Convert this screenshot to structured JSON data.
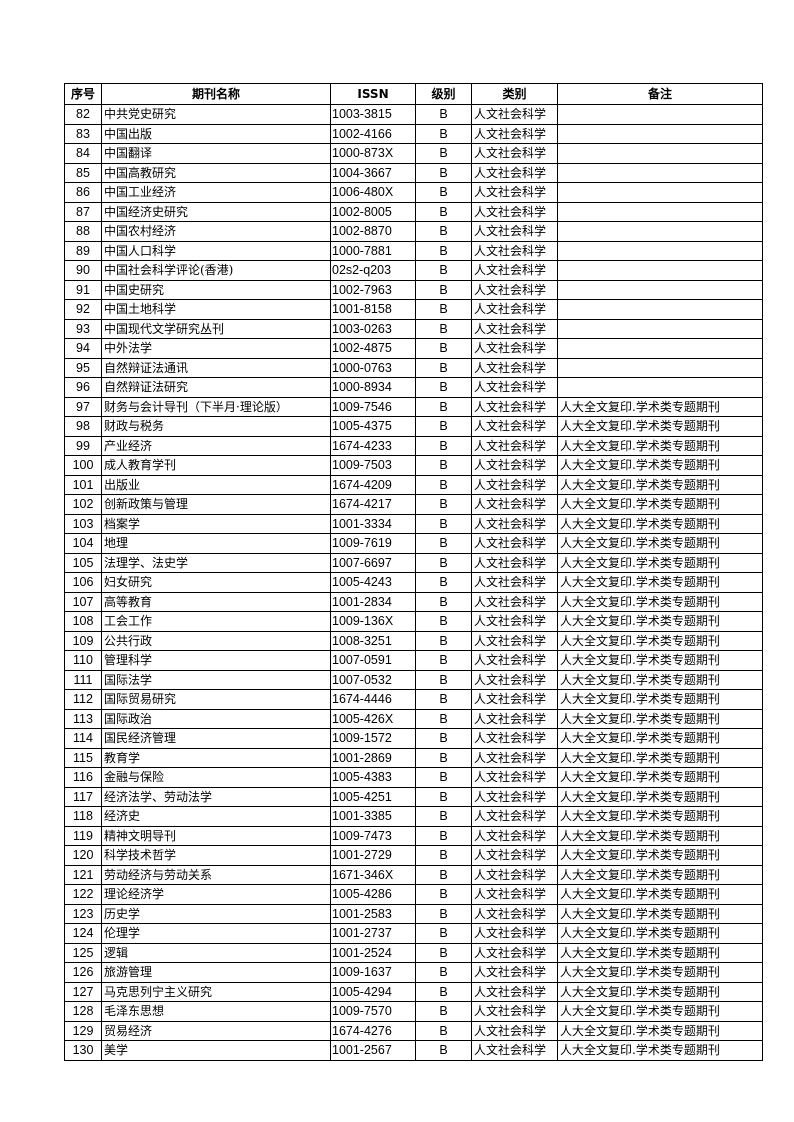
{
  "headers": [
    "序号",
    "期刊名称",
    "ISSN",
    "级别",
    "类别",
    "备注"
  ],
  "rows": [
    [
      "82",
      "中共党史研究",
      "1003-3815",
      "B",
      "人文社会科学",
      ""
    ],
    [
      "83",
      "中国出版",
      "1002-4166",
      "B",
      "人文社会科学",
      ""
    ],
    [
      "84",
      "中国翻译",
      "1000-873X",
      "B",
      "人文社会科学",
      ""
    ],
    [
      "85",
      "中国高教研究",
      "1004-3667",
      "B",
      "人文社会科学",
      ""
    ],
    [
      "86",
      "中国工业经济",
      "1006-480X",
      "B",
      "人文社会科学",
      ""
    ],
    [
      "87",
      "中国经济史研究",
      "1002-8005",
      "B",
      "人文社会科学",
      ""
    ],
    [
      "88",
      "中国农村经济",
      "1002-8870",
      "B",
      "人文社会科学",
      ""
    ],
    [
      "89",
      "中国人口科学",
      "1000-7881",
      "B",
      "人文社会科学",
      ""
    ],
    [
      "90",
      "中国社会科学评论(香港)",
      "02s2-q203",
      "B",
      "人文社会科学",
      ""
    ],
    [
      "91",
      "中国史研究",
      "1002-7963",
      "B",
      "人文社会科学",
      ""
    ],
    [
      "92",
      "中国土地科学",
      "1001-8158",
      "B",
      "人文社会科学",
      ""
    ],
    [
      "93",
      "中国现代文学研究丛刊",
      "1003-0263",
      "B",
      "人文社会科学",
      ""
    ],
    [
      "94",
      "中外法学",
      "1002-4875",
      "B",
      "人文社会科学",
      ""
    ],
    [
      "95",
      "自然辩证法通讯",
      "1000-0763",
      "B",
      "人文社会科学",
      ""
    ],
    [
      "96",
      "自然辩证法研究",
      "1000-8934",
      "B",
      "人文社会科学",
      ""
    ],
    [
      "97",
      "财务与会计导刊（下半月·理论版）",
      "1009-7546",
      "B",
      "人文社会科学",
      "人大全文复印.学术类专题期刊"
    ],
    [
      "98",
      "财政与税务",
      "1005-4375",
      "B",
      "人文社会科学",
      "人大全文复印.学术类专题期刊"
    ],
    [
      "99",
      "产业经济",
      "1674-4233",
      "B",
      "人文社会科学",
      "人大全文复印.学术类专题期刊"
    ],
    [
      "100",
      "成人教育学刊",
      "1009-7503",
      "B",
      "人文社会科学",
      "人大全文复印.学术类专题期刊"
    ],
    [
      "101",
      "出版业",
      "1674-4209",
      "B",
      "人文社会科学",
      "人大全文复印.学术类专题期刊"
    ],
    [
      "102",
      "创新政策与管理",
      "1674-4217",
      "B",
      "人文社会科学",
      "人大全文复印.学术类专题期刊"
    ],
    [
      "103",
      "档案学",
      "1001-3334",
      "B",
      "人文社会科学",
      "人大全文复印.学术类专题期刊"
    ],
    [
      "104",
      "地理",
      "1009-7619",
      "B",
      "人文社会科学",
      "人大全文复印.学术类专题期刊"
    ],
    [
      "105",
      "法理学、法史学",
      "1007-6697",
      "B",
      "人文社会科学",
      "人大全文复印.学术类专题期刊"
    ],
    [
      "106",
      "妇女研究",
      "1005-4243",
      "B",
      "人文社会科学",
      "人大全文复印.学术类专题期刊"
    ],
    [
      "107",
      "高等教育",
      "1001-2834",
      "B",
      "人文社会科学",
      "人大全文复印.学术类专题期刊"
    ],
    [
      "108",
      "工会工作",
      "1009-136X",
      "B",
      "人文社会科学",
      "人大全文复印.学术类专题期刊"
    ],
    [
      "109",
      "公共行政",
      "1008-3251",
      "B",
      "人文社会科学",
      "人大全文复印.学术类专题期刊"
    ],
    [
      "110",
      "管理科学",
      "1007-0591",
      "B",
      "人文社会科学",
      "人大全文复印.学术类专题期刊"
    ],
    [
      "111",
      "国际法学",
      "1007-0532",
      "B",
      "人文社会科学",
      "人大全文复印.学术类专题期刊"
    ],
    [
      "112",
      "国际贸易研究",
      "1674-4446",
      "B",
      "人文社会科学",
      "人大全文复印.学术类专题期刊"
    ],
    [
      "113",
      "国际政治",
      "1005-426X",
      "B",
      "人文社会科学",
      "人大全文复印.学术类专题期刊"
    ],
    [
      "114",
      "国民经济管理",
      "1009-1572",
      "B",
      "人文社会科学",
      "人大全文复印.学术类专题期刊"
    ],
    [
      "115",
      "教育学",
      "1001-2869",
      "B",
      "人文社会科学",
      "人大全文复印.学术类专题期刊"
    ],
    [
      "116",
      "金融与保险",
      "1005-4383",
      "B",
      "人文社会科学",
      "人大全文复印.学术类专题期刊"
    ],
    [
      "117",
      "经济法学、劳动法学",
      "1005-4251",
      "B",
      "人文社会科学",
      "人大全文复印.学术类专题期刊"
    ],
    [
      "118",
      "经济史",
      "1001-3385",
      "B",
      "人文社会科学",
      "人大全文复印.学术类专题期刊"
    ],
    [
      "119",
      "精神文明导刊",
      "1009-7473",
      "B",
      "人文社会科学",
      "人大全文复印.学术类专题期刊"
    ],
    [
      "120",
      "科学技术哲学",
      "1001-2729",
      "B",
      "人文社会科学",
      "人大全文复印.学术类专题期刊"
    ],
    [
      "121",
      "劳动经济与劳动关系",
      "1671-346X",
      "B",
      "人文社会科学",
      "人大全文复印.学术类专题期刊"
    ],
    [
      "122",
      "理论经济学",
      "1005-4286",
      "B",
      "人文社会科学",
      "人大全文复印.学术类专题期刊"
    ],
    [
      "123",
      "历史学",
      "1001-2583",
      "B",
      "人文社会科学",
      "人大全文复印.学术类专题期刊"
    ],
    [
      "124",
      "伦理学",
      "1001-2737",
      "B",
      "人文社会科学",
      "人大全文复印.学术类专题期刊"
    ],
    [
      "125",
      "逻辑",
      "1001-2524",
      "B",
      "人文社会科学",
      "人大全文复印.学术类专题期刊"
    ],
    [
      "126",
      "旅游管理",
      "1009-1637",
      "B",
      "人文社会科学",
      "人大全文复印.学术类专题期刊"
    ],
    [
      "127",
      "马克思列宁主义研究",
      "1005-4294",
      "B",
      "人文社会科学",
      "人大全文复印.学术类专题期刊"
    ],
    [
      "128",
      "毛泽东思想",
      "1009-7570",
      "B",
      "人文社会科学",
      "人大全文复印.学术类专题期刊"
    ],
    [
      "129",
      "贸易经济",
      "1674-4276",
      "B",
      "人文社会科学",
      "人大全文复印.学术类专题期刊"
    ],
    [
      "130",
      "美学",
      "1001-2567",
      "B",
      "人文社会科学",
      "人大全文复印.学术类专题期刊"
    ]
  ]
}
